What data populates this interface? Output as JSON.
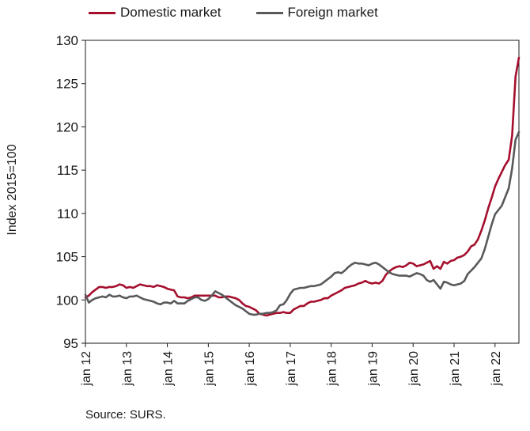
{
  "chart_data": {
    "type": "line",
    "title": "",
    "xlabel": "",
    "ylabel": "Index 2015=100",
    "ylim": [
      95,
      130
    ],
    "yticks": [
      "95",
      "100",
      "105",
      "110",
      "115",
      "120",
      "125",
      "130"
    ],
    "xticks": [
      "jan 12",
      "jan 13",
      "jan 14",
      "jan 15",
      "jan 16",
      "jan 17",
      "jan 18",
      "jan 19",
      "jan 20",
      "jan 21",
      "jan 22"
    ],
    "grid": false,
    "legend_position": "top",
    "source": "Source: SURS.",
    "x_start": "jan 12",
    "series": [
      {
        "name": "Domestic market",
        "color": "#a50f2d",
        "values": [
          100.3,
          100.5,
          100.9,
          101.2,
          101.5,
          101.5,
          101.4,
          101.5,
          101.5,
          101.6,
          101.8,
          101.7,
          101.4,
          101.5,
          101.4,
          101.6,
          101.8,
          101.7,
          101.6,
          101.6,
          101.5,
          101.7,
          101.6,
          101.5,
          101.3,
          101.2,
          101.1,
          100.4,
          100.3,
          100.3,
          100.2,
          100.3,
          100.5,
          100.5,
          100.5,
          100.5,
          100.5,
          100.5,
          100.5,
          100.3,
          100.3,
          100.4,
          100.4,
          100.3,
          100.2,
          100.0,
          99.6,
          99.3,
          99.2,
          99.0,
          98.8,
          98.4,
          98.3,
          98.2,
          98.3,
          98.4,
          98.5,
          98.5,
          98.6,
          98.5,
          98.5,
          98.9,
          99.1,
          99.3,
          99.3,
          99.6,
          99.8,
          99.8,
          99.9,
          100.0,
          100.2,
          100.2,
          100.5,
          100.7,
          100.9,
          101.1,
          101.4,
          101.5,
          101.6,
          101.7,
          101.9,
          102.0,
          102.2,
          102.0,
          101.9,
          102.0,
          101.9,
          102.2,
          102.9,
          103.3,
          103.6,
          103.8,
          103.9,
          103.8,
          104.0,
          104.3,
          104.2,
          103.9,
          104.0,
          104.1,
          104.3,
          104.5,
          103.6,
          103.9,
          103.6,
          104.4,
          104.2,
          104.5,
          104.6,
          104.9,
          105.0,
          105.2,
          105.6,
          106.2,
          106.4,
          107.0,
          108.0,
          109.2,
          110.6,
          111.8,
          113.1,
          114.0,
          114.8,
          115.6,
          116.2,
          119.0,
          125.8,
          128.0
        ]
      },
      {
        "name": "Foreign market",
        "color": "#58595b",
        "values": [
          100.6,
          99.7,
          100.0,
          100.2,
          100.3,
          100.4,
          100.3,
          100.6,
          100.4,
          100.4,
          100.5,
          100.3,
          100.2,
          100.4,
          100.4,
          100.5,
          100.3,
          100.1,
          100.0,
          99.9,
          99.8,
          99.6,
          99.5,
          99.7,
          99.7,
          99.6,
          99.9,
          99.6,
          99.6,
          99.6,
          99.9,
          100.1,
          100.3,
          100.3,
          100.0,
          99.9,
          100.1,
          100.5,
          101.0,
          100.8,
          100.6,
          100.3,
          100.0,
          99.7,
          99.4,
          99.2,
          99.0,
          98.7,
          98.4,
          98.3,
          98.3,
          98.4,
          98.4,
          98.5,
          98.5,
          98.6,
          98.8,
          99.4,
          99.5,
          100.0,
          100.7,
          101.2,
          101.3,
          101.4,
          101.4,
          101.5,
          101.6,
          101.6,
          101.7,
          101.8,
          102.1,
          102.4,
          102.7,
          103.1,
          103.2,
          103.1,
          103.4,
          103.8,
          104.1,
          104.3,
          104.2,
          104.2,
          104.1,
          104.0,
          104.2,
          104.3,
          104.1,
          103.8,
          103.5,
          103.2,
          103.0,
          102.9,
          102.8,
          102.8,
          102.8,
          102.7,
          102.9,
          103.1,
          103.0,
          102.8,
          102.3,
          102.1,
          102.3,
          101.8,
          101.3,
          102.1,
          102.0,
          101.8,
          101.7,
          101.8,
          101.9,
          102.2,
          103.0,
          103.4,
          103.8,
          104.3,
          104.8,
          105.9,
          107.3,
          108.7,
          109.9,
          110.4,
          110.9,
          111.9,
          112.9,
          115.2,
          118.5,
          119.4
        ]
      }
    ]
  }
}
